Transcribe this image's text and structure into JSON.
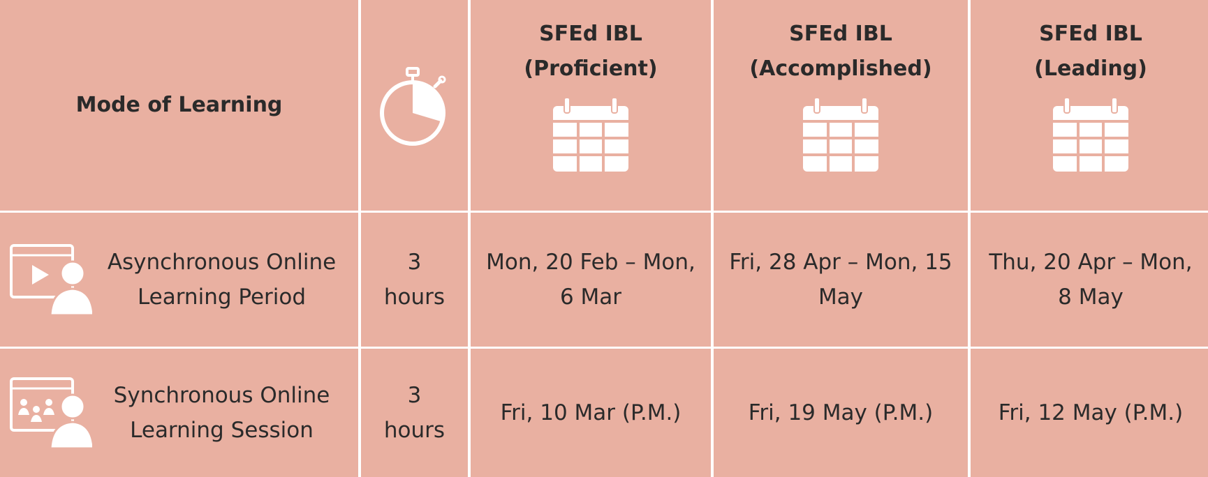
{
  "table": {
    "header": {
      "mode_label": "Mode of Learning",
      "duration_icon": "stopwatch-icon",
      "levels": [
        {
          "line1": "SFEd IBL",
          "line2": "(Proficient)",
          "icon": "calendar-icon"
        },
        {
          "line1": "SFEd IBL",
          "line2": "(Accomplished)",
          "icon": "calendar-icon"
        },
        {
          "line1": "SFEd IBL",
          "line2": "(Leading)",
          "icon": "calendar-icon"
        }
      ]
    },
    "rows": [
      {
        "icon": "video-learner-icon",
        "mode_line1": "Asynchronous Online",
        "mode_line2": "Learning Period",
        "duration_line1": "3",
        "duration_line2": "hours",
        "dates": [
          {
            "line1": "Mon, 20 Feb – Mon,",
            "line2": "6 Mar"
          },
          {
            "line1": "Fri, 28 Apr – Mon, 15",
            "line2": "May"
          },
          {
            "line1": "Thu, 20 Apr – Mon,",
            "line2": "8 May"
          }
        ]
      },
      {
        "icon": "group-session-icon",
        "mode_line1": "Synchronous Online",
        "mode_line2": "Learning Session",
        "duration_line1": "3",
        "duration_line2": "hours",
        "dates": [
          {
            "line1": "Fri, 10 Mar (P.M.)"
          },
          {
            "line1": "Fri, 19 May (P.M.)"
          },
          {
            "line1": "Fri, 12 May (P.M.)"
          }
        ]
      }
    ]
  },
  "colors": {
    "cell_background": "#e9b0a1",
    "grid_lines": "#ffffff",
    "text": "#2a2a2a",
    "icons": "#ffffff"
  }
}
